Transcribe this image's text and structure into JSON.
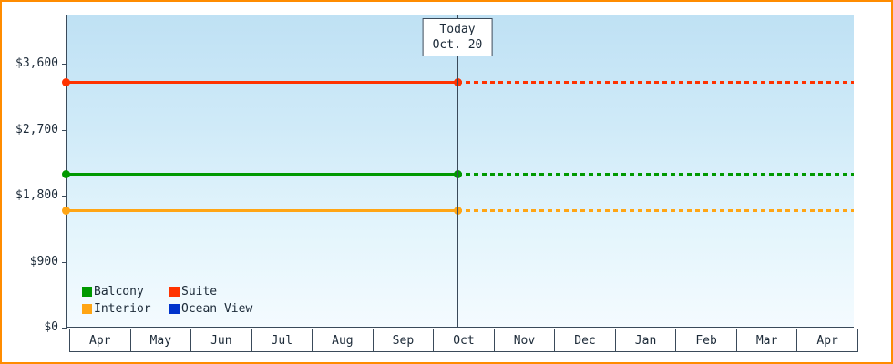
{
  "frame": {
    "border_color": "#ff8c00",
    "axis_color": "#3a4a5a",
    "plot_background_top": "#bfe1f4",
    "plot_background_bottom": "#f4fbff"
  },
  "chart_data": {
    "type": "line",
    "title": "",
    "xlabel": "",
    "ylabel": "",
    "x_categories": [
      "Apr",
      "May",
      "Jun",
      "Jul",
      "Aug",
      "Sep",
      "Oct",
      "Nov",
      "Dec",
      "Jan",
      "Feb",
      "Mar",
      "Apr"
    ],
    "y_ticks": [
      {
        "label": "$3,600",
        "value": 3600
      },
      {
        "label": "$2,700",
        "value": 2700
      },
      {
        "label": "$1,800",
        "value": 1800
      },
      {
        "label": "$900",
        "value": 900
      },
      {
        "label": "$0",
        "value": 0
      }
    ],
    "ylim": [
      0,
      4250
    ],
    "grid": false,
    "today_annotation": {
      "line1": "Today",
      "line2": "Oct. 20",
      "x_month": "Oct",
      "note": "vertical marker line; series are solid before today, dotted projection after"
    },
    "series": [
      {
        "name": "Suite",
        "color": "#ff3300",
        "value": 3350,
        "style": "solid-then-dotted"
      },
      {
        "name": "Balcony",
        "color": "#009900",
        "value": 2090,
        "style": "solid-then-dotted"
      },
      {
        "name": "Interior",
        "color": "#ffa514",
        "value": 1600,
        "style": "solid-then-dotted"
      },
      {
        "name": "Ocean View",
        "color": "#0033cc",
        "value": null,
        "style": "none"
      }
    ],
    "legend": {
      "position": "bottom-left",
      "items": [
        {
          "label": "Balcony",
          "color": "#009900"
        },
        {
          "label": "Suite",
          "color": "#ff3300"
        },
        {
          "label": "Interior",
          "color": "#ffa514"
        },
        {
          "label": "Ocean View",
          "color": "#0033cc"
        }
      ]
    }
  }
}
